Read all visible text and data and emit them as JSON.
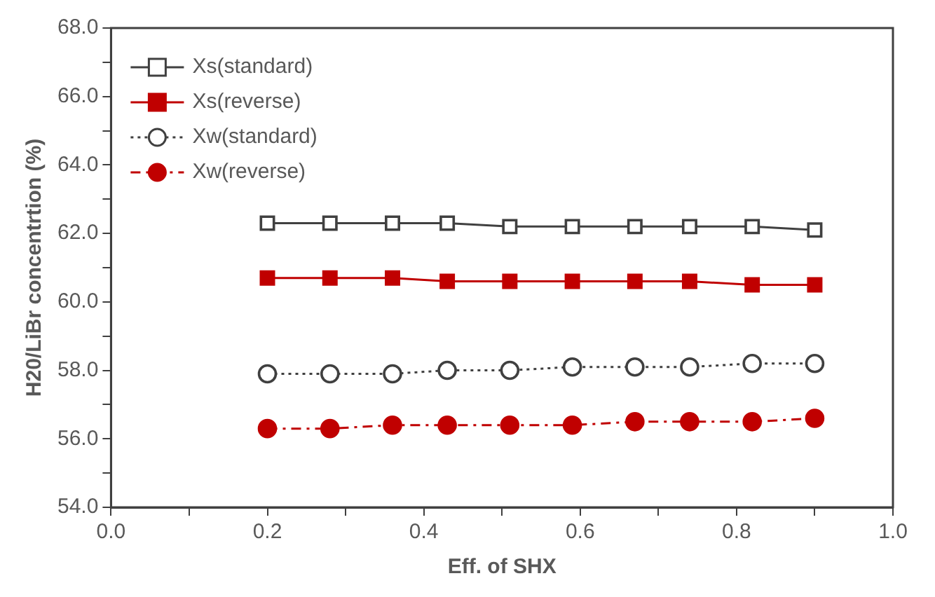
{
  "chart_data": {
    "type": "line",
    "xlabel": "Eff. of SHX",
    "ylabel": "H20/LiBr concentrtion (%)",
    "x": [
      0.2,
      0.28,
      0.36,
      0.43,
      0.51,
      0.59,
      0.67,
      0.74,
      0.82,
      0.9
    ],
    "xlim": [
      0,
      1
    ],
    "xticks": [
      {
        "value": 0,
        "label": "0.0"
      },
      {
        "value": 0.1,
        "label": null
      },
      {
        "value": 0.2,
        "label": "0.2"
      },
      {
        "value": 0.3,
        "label": null
      },
      {
        "value": 0.4,
        "label": "0.4"
      },
      {
        "value": 0.5,
        "label": null
      },
      {
        "value": 0.6,
        "label": "0.6"
      },
      {
        "value": 0.7,
        "label": null
      },
      {
        "value": 0.8,
        "label": "0.8"
      },
      {
        "value": 0.9,
        "label": null
      },
      {
        "value": 1,
        "label": "1.0"
      }
    ],
    "ylim": [
      54,
      68
    ],
    "yticks": [
      {
        "value": 54,
        "label": "54.0"
      },
      {
        "value": 55,
        "label": null
      },
      {
        "value": 56,
        "label": "56.0"
      },
      {
        "value": 57,
        "label": null
      },
      {
        "value": 58,
        "label": "58.0"
      },
      {
        "value": 59,
        "label": null
      },
      {
        "value": 60,
        "label": "60.0"
      },
      {
        "value": 61,
        "label": null
      },
      {
        "value": 62,
        "label": "62.0"
      },
      {
        "value": 63,
        "label": null
      },
      {
        "value": 64,
        "label": "64.0"
      },
      {
        "value": 65,
        "label": null
      },
      {
        "value": 66,
        "label": "66.0"
      },
      {
        "value": 67,
        "label": null
      },
      {
        "value": 68,
        "label": "68.0"
      }
    ],
    "grid": false,
    "legend": "top left",
    "series": [
      {
        "name": "Xs(standard)",
        "color": "#404040",
        "marker": "square",
        "line_style": "solid",
        "values": [
          62.3,
          62.3,
          62.3,
          62.3,
          62.2,
          62.2,
          62.2,
          62.2,
          62.2,
          62.1
        ]
      },
      {
        "name": "Xs(reverse)",
        "color": "#c00000",
        "marker": "square",
        "line_style": "solid",
        "values": [
          60.7,
          60.7,
          60.7,
          60.6,
          60.6,
          60.6,
          60.6,
          60.6,
          60.5,
          60.5
        ]
      },
      {
        "name": "Xw(standard)",
        "color": "#404040",
        "marker": "circle",
        "line_style": "dotted",
        "values": [
          57.9,
          57.9,
          57.9,
          58.0,
          58.0,
          58.1,
          58.1,
          58.1,
          58.2,
          58.2
        ]
      },
      {
        "name": "Xw(reverse)",
        "color": "#c00000",
        "marker": "circle",
        "line_style": "dashed",
        "values": [
          56.3,
          56.3,
          56.4,
          56.4,
          56.4,
          56.4,
          56.5,
          56.5,
          56.5,
          56.6
        ]
      }
    ]
  }
}
